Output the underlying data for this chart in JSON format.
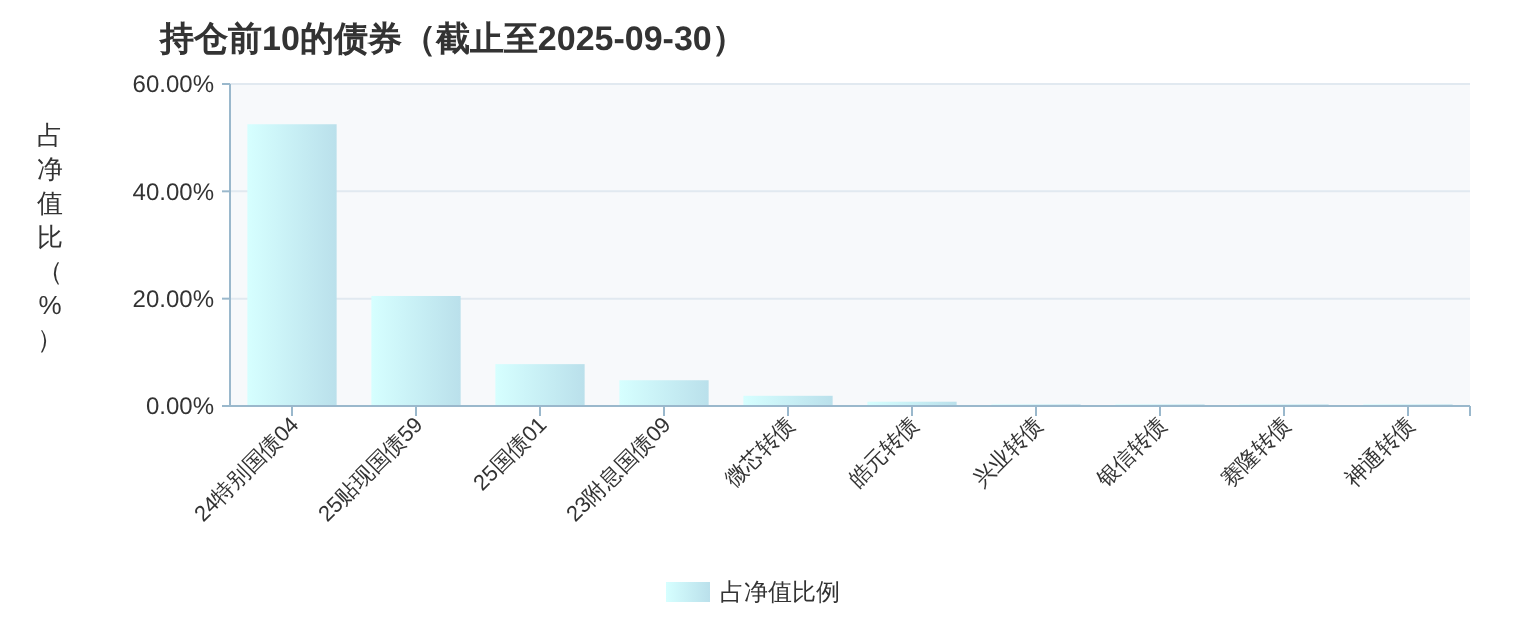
{
  "chart_data": {
    "type": "bar",
    "title": "持仓前10的债券（截止至2025-09-30）",
    "ylabel": "占净值比（%）",
    "categories": [
      "24特别国债04",
      "25贴现国债59",
      "25国债01",
      "23附息国债09",
      "微芯转债",
      "皓元转债",
      "兴业转债",
      "银信转债",
      "赛隆转债",
      "神通转债"
    ],
    "series": [
      {
        "name": "占净值比例",
        "color": "#c4ecf8",
        "values": [
          52.5,
          20.5,
          7.8,
          4.8,
          1.9,
          0.8,
          0.3,
          0.3,
          0.3,
          0.3
        ]
      }
    ],
    "ylim": [
      0,
      60
    ],
    "yticks": [
      {
        "value": 0,
        "label": "0.00%"
      },
      {
        "value": 20,
        "label": "20.00%"
      },
      {
        "value": 40,
        "label": "40.00%"
      },
      {
        "value": 60,
        "label": "60.00%"
      }
    ],
    "grid": "y",
    "legend": "bottom"
  }
}
